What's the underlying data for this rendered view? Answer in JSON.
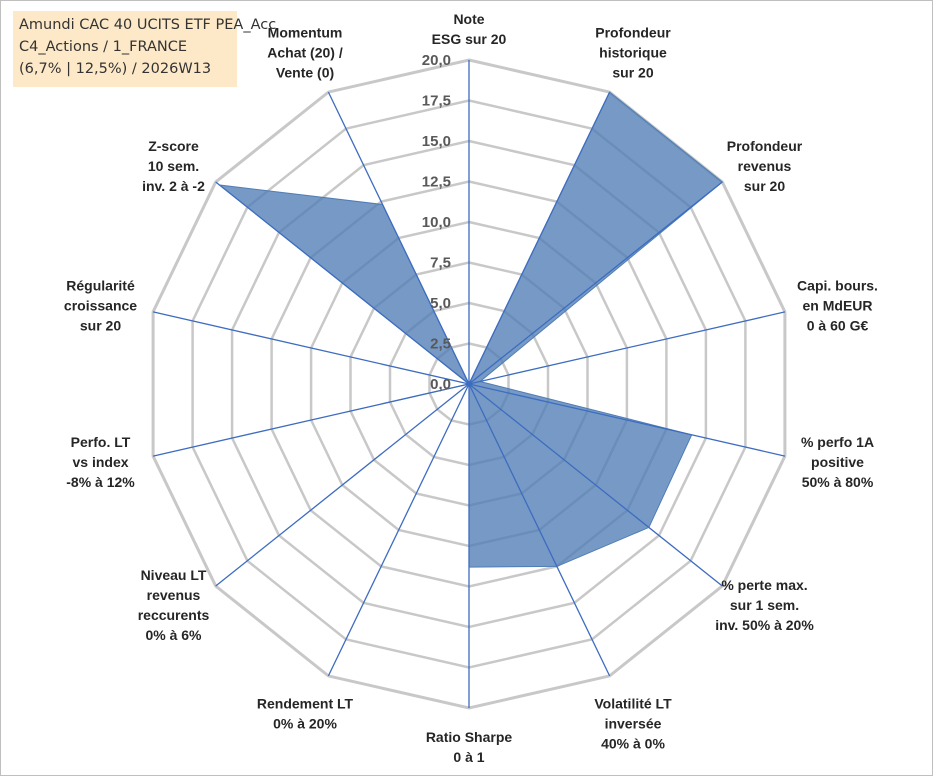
{
  "title_box": {
    "line1": "Amundi CAC 40 UCITS ETF PEA_Acc",
    "line2": "C4_Actions / 1_FRANCE",
    "line3": "(6,7% | 12,5%) / 2026W13"
  },
  "chart_data": {
    "type": "radar",
    "rlim": [
      0,
      20
    ],
    "ticks": [
      "0,0",
      "2,5",
      "5,0",
      "7,5",
      "10,0",
      "12,5",
      "15,0",
      "17,5",
      "20,0"
    ],
    "grid": true,
    "axes": [
      {
        "lines": [
          "Note",
          "ESG sur 20"
        ]
      },
      {
        "lines": [
          "Profondeur",
          "historique",
          "sur 20"
        ]
      },
      {
        "lines": [
          "Profondeur",
          "revenus",
          "sur 20"
        ]
      },
      {
        "lines": [
          "Capi. bours.",
          "en MdEUR",
          "0 à 60 G€"
        ]
      },
      {
        "lines": [
          "% perfo 1A",
          "positive",
          "50% à 80%"
        ]
      },
      {
        "lines": [
          "% perte max.",
          "sur 1 sem.",
          "inv. 50% à 20%"
        ]
      },
      {
        "lines": [
          "Volatilité LT",
          "inversée",
          "40% à 0%"
        ]
      },
      {
        "lines": [
          "Ratio Sharpe",
          "0 à 1"
        ]
      },
      {
        "lines": [
          "Rendement LT",
          "0% à 20%"
        ]
      },
      {
        "lines": [
          "Niveau LT",
          "revenus",
          "reccurents",
          "0% à 6%"
        ]
      },
      {
        "lines": [
          "Perfo. LT",
          "vs index",
          "-8% à 12%"
        ]
      },
      {
        "lines": [
          "Régularité",
          "croissance",
          "sur 20"
        ]
      },
      {
        "lines": [
          "Z-score",
          "10 sem.",
          "inv. 2 à -2"
        ]
      },
      {
        "lines": [
          "Momentum",
          "Achat (20) /",
          "Vente (0)"
        ]
      }
    ],
    "series": [
      {
        "values": [
          0,
          20,
          20,
          0.7,
          14.1,
          14.2,
          12.5,
          11.3,
          0,
          0,
          7.8,
          0,
          19.7,
          12.3
        ],
        "color": "#4f7db5",
        "fill_opacity": 0.78
      }
    ],
    "colors": {
      "grid": "#c8c8c8",
      "axis_line": "#3d6cc0",
      "title_box_bg": "#fde9c8"
    }
  }
}
